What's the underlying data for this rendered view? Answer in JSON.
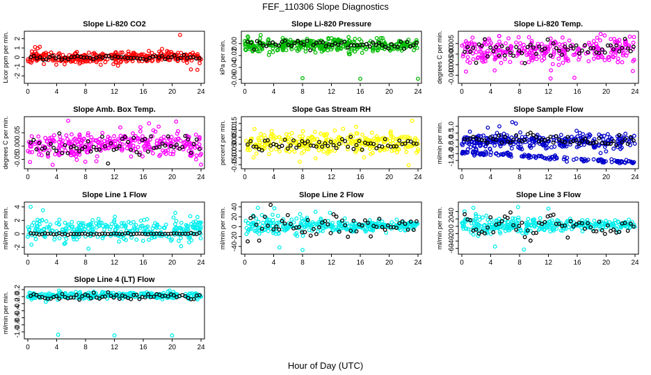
{
  "figure": {
    "title": "FEF_110306  Slope Diagnostics",
    "xlabel": "Hour of Day (UTC)"
  },
  "chart_data": [
    {
      "type": "scatter",
      "title": "Slope Li-820 CO2",
      "ylabel": "Licor ppm per min.",
      "xlim": [
        0,
        24
      ],
      "ylim": [
        -2.5,
        2.5
      ],
      "xticks": [
        0,
        4,
        8,
        12,
        16,
        20,
        24
      ],
      "yticks": [
        {
          "v": 2,
          "label": "2"
        },
        {
          "v": 1,
          "label": "1"
        },
        {
          "v": 0,
          "label": "0"
        },
        {
          "v": -1,
          "label": "-1"
        },
        {
          "v": -2,
          "label": "-2"
        }
      ],
      "colors": {
        "main": "#ff0000",
        "ref": "#000000"
      },
      "sample": {
        "main_center": 0,
        "main_spread": 0.35,
        "ref_center": 0,
        "ref_spread": 0.12,
        "n_main": 330,
        "n_ref": 55,
        "seed": 11,
        "outliers": [
          [
            1,
            1.1
          ],
          [
            21.1,
            2.4
          ],
          [
            22.6,
            -1.3
          ],
          [
            23.5,
            -1.35
          ],
          [
            12.5,
            -0.9
          ],
          [
            5.1,
            -0.75
          ],
          [
            18.6,
            0.9
          ]
        ]
      }
    },
    {
      "type": "scatter",
      "title": "Slope Li-820 Pressure",
      "ylabel": "kPa per min.",
      "xlim": [
        0,
        24
      ],
      "ylim": [
        -0.062,
        0.016
      ],
      "xticks": [
        0,
        4,
        8,
        12,
        16,
        20,
        24
      ],
      "yticks": [
        {
          "v": 0,
          "label": "0.00"
        },
        {
          "v": -0.02,
          "label": "-0.02"
        },
        {
          "v": -0.04,
          "label": "-0.04"
        },
        {
          "v": -0.06,
          "label": "-0.06"
        }
      ],
      "colors": {
        "main": "#00bb00",
        "ref": "#000000"
      },
      "sample": {
        "main_center": -0.003,
        "main_spread": 0.006,
        "ref_center": -0.002,
        "ref_spread": 0.004,
        "n_main": 330,
        "n_ref": 55,
        "seed": 22,
        "outliers": [
          [
            8,
            -0.058
          ],
          [
            16,
            -0.059
          ],
          [
            24,
            -0.059
          ],
          [
            0.4,
            0.012
          ],
          [
            12,
            0.009
          ]
        ]
      }
    },
    {
      "type": "scatter",
      "title": "Slope Li-820 Temp.",
      "ylabel": "degrees C per min.",
      "xlim": [
        0,
        24
      ],
      "ylim": [
        -0.0125,
        0.0095
      ],
      "xticks": [
        0,
        4,
        8,
        12,
        16,
        20,
        24
      ],
      "yticks": [
        {
          "v": 0.005,
          "label": "0.005"
        },
        {
          "v": 0,
          "label": "0.000"
        },
        {
          "v": -0.005,
          "label": "-0.005"
        },
        {
          "v": -0.01,
          "label": "-0.010"
        }
      ],
      "colors": {
        "main": "#ff00ff",
        "ref": "#000000"
      },
      "sample": {
        "main_center": 0.002,
        "main_spread": 0.0035,
        "ref_center": 0.002,
        "ref_spread": 0.0025,
        "n_main": 300,
        "n_ref": 60,
        "seed": 33,
        "outliers": [
          [
            12.3,
            -0.0115
          ],
          [
            15.6,
            -0.0112
          ],
          [
            23.7,
            -0.008
          ],
          [
            19.8,
            0.0088
          ]
        ]
      }
    },
    {
      "type": "scatter",
      "title": "Slope Amb. Box Temp.",
      "ylabel": "degrees C per min.",
      "xlim": [
        0,
        24
      ],
      "ylim": [
        -0.075,
        0.1
      ],
      "xticks": [
        0,
        4,
        8,
        12,
        16,
        20,
        24
      ],
      "yticks": [
        {
          "v": 0.05,
          "label": "0.05"
        },
        {
          "v": 0,
          "label": "0.00"
        },
        {
          "v": -0.05,
          "label": "-0.05"
        }
      ],
      "colors": {
        "main": "#ff00ff",
        "ref": "#000000"
      },
      "sample": {
        "main_center": 0.005,
        "main_spread": 0.028,
        "ref_center": 0,
        "ref_spread": 0.02,
        "n_main": 320,
        "n_ref": 60,
        "seed": 44,
        "outliers": [
          [
            5.6,
            0.095
          ],
          [
            16.8,
            0.085
          ],
          [
            24,
            -0.07
          ],
          [
            0.3,
            -0.06
          ]
        ]
      }
    },
    {
      "type": "scatter",
      "title": "Slope Gas Stream RH",
      "ylabel": "percent per min.",
      "xlim": [
        0,
        24
      ],
      "ylim": [
        -0.16,
        0.18
      ],
      "xticks": [
        0,
        4,
        8,
        12,
        16,
        20,
        24
      ],
      "yticks": [
        {
          "v": 0.15,
          "label": "0.15"
        },
        {
          "v": 0.1,
          "label": "0.10"
        },
        {
          "v": 0.05,
          "label": "0.05"
        },
        {
          "v": 0,
          "label": "0.00"
        },
        {
          "v": -0.05,
          "label": "-0.05"
        },
        {
          "v": -0.1,
          "label": "-0.10"
        },
        {
          "v": -0.15,
          "label": "-0.15"
        }
      ],
      "colors": {
        "main": "#ffff00",
        "ref": "#000000"
      },
      "sample": {
        "main_center": 0.01,
        "main_spread": 0.045,
        "ref_center": 0,
        "ref_spread": 0.02,
        "n_main": 320,
        "n_ref": 60,
        "seed": 55,
        "outliers": [
          [
            22.7,
            -0.155
          ],
          [
            23.2,
            0.17
          ]
        ]
      }
    },
    {
      "type": "scatter",
      "title": "Slope Sample Flow",
      "ylabel": "ml/min per min.",
      "xlim": [
        0,
        24
      ],
      "ylim": [
        -1.9,
        1.5
      ],
      "xticks": [
        0,
        4,
        8,
        12,
        16,
        20,
        24
      ],
      "yticks": [
        {
          "v": 1,
          "label": "1.0"
        },
        {
          "v": 0.5,
          "label": "0.5"
        },
        {
          "v": 0,
          "label": "0.0"
        },
        {
          "v": -0.5,
          "label": "-0.5"
        },
        {
          "v": -1,
          "label": "-1.0"
        },
        {
          "v": -1.5,
          "label": "-1.5"
        }
      ],
      "colors": {
        "main": "#0000cc",
        "ref": "#000000"
      },
      "sample": {
        "main_center": -0.1,
        "main_spread": 0.3,
        "ref_center": 0,
        "ref_spread": 0.2,
        "n_main": 300,
        "n_ref": 60,
        "seed": 66,
        "band": {
          "x0": 0,
          "y0": -0.9,
          "x1": 24,
          "y1": -1.65,
          "n": 140
        },
        "outliers": [
          [
            7,
            1.3
          ],
          [
            7.5,
            1.2
          ],
          [
            5.2,
            1.0
          ],
          [
            3.6,
            0.9
          ]
        ]
      }
    },
    {
      "type": "scatter",
      "title": "Slope Line 1 Flow",
      "ylabel": "ml/min per min.",
      "xlim": [
        0,
        24
      ],
      "ylim": [
        -2.6,
        4.3
      ],
      "xticks": [
        0,
        4,
        8,
        12,
        16,
        20,
        24
      ],
      "yticks": [
        {
          "v": 4,
          "label": "4"
        },
        {
          "v": 2,
          "label": "2"
        },
        {
          "v": 0,
          "label": "0"
        },
        {
          "v": -2,
          "label": "-2"
        }
      ],
      "colors": {
        "main": "#00eeee",
        "ref": "#000000"
      },
      "sample": {
        "main_center": 0.6,
        "main_spread": 1.0,
        "ref_center": 0,
        "ref_spread": 0.05,
        "n_main": 320,
        "n_ref": 60,
        "seed": 77,
        "outliers": [
          [
            0.4,
            4.0
          ],
          [
            2.1,
            3.5
          ],
          [
            8.4,
            -2.2
          ],
          [
            0.5,
            -1.6
          ]
        ]
      }
    },
    {
      "type": "scatter",
      "title": "Slope Line 2 Flow",
      "ylabel": "ml/min per min.",
      "xlim": [
        0,
        24
      ],
      "ylim": [
        -50,
        44
      ],
      "xticks": [
        0,
        4,
        8,
        12,
        16,
        20,
        24
      ],
      "yticks": [
        {
          "v": 40,
          "label": "40"
        },
        {
          "v": 20,
          "label": "20"
        },
        {
          "v": 0,
          "label": "0"
        },
        {
          "v": -20,
          "label": "-20"
        },
        {
          "v": -40,
          "label": "-40"
        }
      ],
      "colors": {
        "main": "#00eeee",
        "ref": "#000000"
      },
      "sample": {
        "main_center": 2,
        "main_spread": 7,
        "ref_center": 3,
        "ref_spread": 12,
        "n_main": 320,
        "n_ref": 60,
        "seed": 88,
        "taper": true,
        "outliers": [
          [
            1.8,
            38
          ],
          [
            4.1,
            37
          ],
          [
            8.0,
            -47
          ],
          [
            4.8,
            -42
          ],
          [
            9.8,
            30
          ],
          [
            11.8,
            28
          ]
        ]
      }
    },
    {
      "type": "scatter",
      "title": "Slope Line 3 Flow",
      "ylabel": "ml/min per min.",
      "xlim": [
        0,
        24
      ],
      "ylim": [
        -68,
        58
      ],
      "xticks": [
        0,
        4,
        8,
        12,
        16,
        20,
        24
      ],
      "yticks": [
        {
          "v": 40,
          "label": "40"
        },
        {
          "v": 20,
          "label": "20"
        },
        {
          "v": 0,
          "label": "0"
        },
        {
          "v": -20,
          "label": "-20"
        },
        {
          "v": -40,
          "label": "-40"
        },
        {
          "v": -60,
          "label": "-60"
        }
      ],
      "colors": {
        "main": "#00eeee",
        "ref": "#000000"
      },
      "sample": {
        "main_center": 3,
        "main_spread": 9,
        "ref_center": 4,
        "ref_spread": 16,
        "n_main": 320,
        "n_ref": 60,
        "seed": 99,
        "taper": true,
        "outliers": [
          [
            1.6,
            50
          ],
          [
            7.8,
            52
          ],
          [
            8.6,
            -63
          ],
          [
            4.6,
            -55
          ],
          [
            12.0,
            48
          ]
        ]
      }
    },
    {
      "type": "scatter",
      "title": "Slope Line 4 (LT) Flow",
      "ylabel": "ml/min per min.",
      "xlim": [
        0,
        24
      ],
      "ylim": [
        -1.12,
        0.2
      ],
      "xticks": [
        0,
        4,
        8,
        12,
        16,
        20,
        24
      ],
      "yticks": [
        {
          "v": 0.2,
          "label": "0.2"
        },
        {
          "v": 0,
          "label": "0.0"
        },
        {
          "v": -0.2,
          "label": "-0.2"
        },
        {
          "v": -0.4,
          "label": "-0.4"
        },
        {
          "v": -0.6,
          "label": "-0.6"
        },
        {
          "v": -0.8,
          "label": "-0.8"
        },
        {
          "v": -1,
          "label": "-1.0"
        }
      ],
      "colors": {
        "main": "#00eeee",
        "ref": "#000000"
      },
      "sample": {
        "main_center": 0.03,
        "main_spread": 0.05,
        "ref_center": 0,
        "ref_spread": 0.05,
        "n_main": 320,
        "n_ref": 60,
        "seed": 111,
        "outliers": [
          [
            4.2,
            -1.08
          ],
          [
            12.0,
            -1.1
          ],
          [
            20.0,
            -1.1
          ],
          [
            2.5,
            -0.15
          ]
        ]
      }
    }
  ]
}
